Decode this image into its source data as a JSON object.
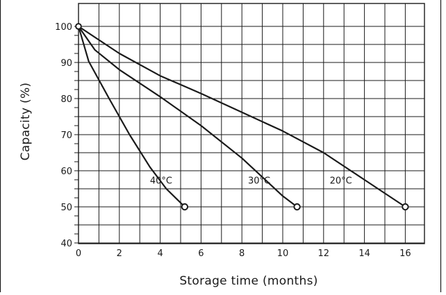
{
  "chart_data": {
    "type": "line",
    "title": "",
    "xlabel": "Storage time (months)",
    "ylabel": "Capacity (%)",
    "xlim": [
      0,
      16.6
    ],
    "ylim": [
      40,
      101
    ],
    "xticks": [
      0,
      2,
      4,
      6,
      8,
      10,
      12,
      14,
      16
    ],
    "yticks": [
      40,
      50,
      60,
      70,
      80,
      90,
      100
    ],
    "grid": true,
    "series": [
      {
        "name": "40°C",
        "label_at": [
          3.5,
          57.2
        ],
        "points": [
          [
            0,
            100
          ],
          [
            0.5,
            90.3
          ],
          [
            1.5,
            80
          ],
          [
            2.5,
            70
          ],
          [
            3.5,
            61
          ],
          [
            4.3,
            55
          ],
          [
            5.2,
            50
          ]
        ]
      },
      {
        "name": "30°C",
        "label_at": [
          8.3,
          57.2
        ],
        "points": [
          [
            0,
            100
          ],
          [
            0.8,
            93.5
          ],
          [
            2,
            88
          ],
          [
            4,
            80.5
          ],
          [
            6,
            72.5
          ],
          [
            8,
            63.5
          ],
          [
            10,
            53
          ],
          [
            10.7,
            50
          ]
        ]
      },
      {
        "name": "20°C",
        "label_at": [
          12.3,
          57.2
        ],
        "points": [
          [
            0,
            100
          ],
          [
            2,
            92.5
          ],
          [
            4,
            86.3
          ],
          [
            6,
            81.4
          ],
          [
            8,
            76.2
          ],
          [
            10,
            71
          ],
          [
            12,
            65
          ],
          [
            14,
            57.5
          ],
          [
            16,
            50
          ]
        ]
      }
    ],
    "colors": {
      "line": "#1a1a1a",
      "grid": "#1a1a1a",
      "border": "#1a1a1a",
      "marker_fill": "#ffffff"
    }
  }
}
